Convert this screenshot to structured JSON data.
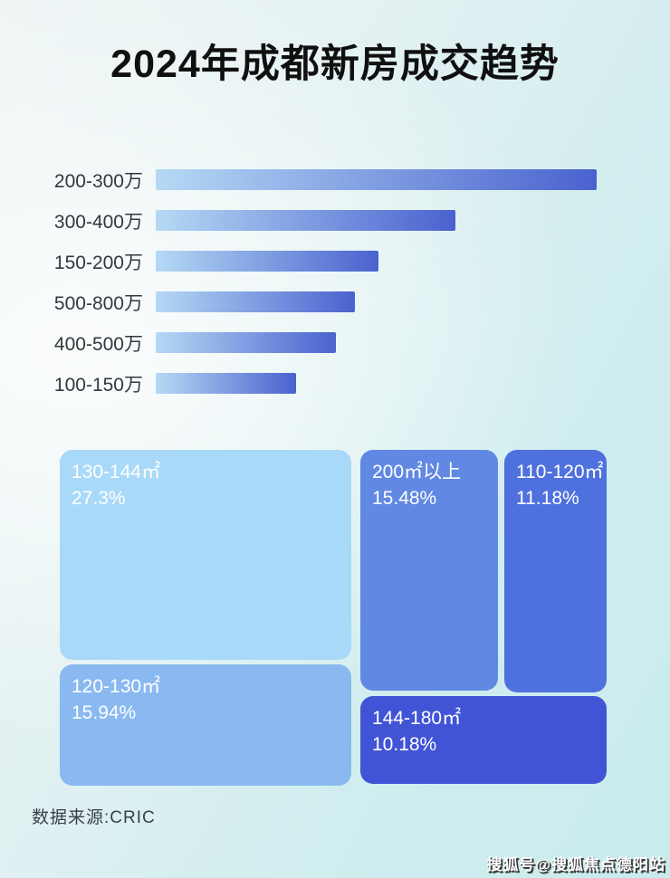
{
  "title": "2024年成都新房成交趋势",
  "footer": {
    "source": "数据来源:CRIC"
  },
  "watermark": {
    "text": "搜狐号@搜狐焦点德阳站"
  },
  "colors": {
    "background_light": "#f2f7f7",
    "background_cyan": "#c9ebee",
    "title_color": "#101010",
    "bar_label_color": "#33383d",
    "treemap_text_color": "#ffffff"
  },
  "chart_data": [
    {
      "type": "bar",
      "orientation": "horizontal",
      "title": "2024年成都新房成交趋势 (总价段成交, 无数值标注)",
      "categories": [
        "200-300万",
        "300-400万",
        "150-200万",
        "500-800万",
        "400-500万",
        "100-150万"
      ],
      "values_pct_of_max": [
        100,
        68,
        50.5,
        45.2,
        40.9,
        31.8
      ],
      "value_labels_shown": false,
      "axis_shown": false,
      "grid": false,
      "legend": false,
      "bar_gradient": [
        "#b5d9f4",
        "#4a62cf"
      ]
    },
    {
      "type": "treemap",
      "title": "面积段成交占比",
      "items": [
        {
          "label": "130-144㎡",
          "percent": "27.3%",
          "value": 27.3,
          "color": "#a9d9f8"
        },
        {
          "label": "120-130㎡",
          "percent": "15.94%",
          "value": 15.94,
          "color": "#89b9f0"
        },
        {
          "label": "200㎡以上",
          "percent": "15.48%",
          "value": 15.48,
          "color": "#6189e3"
        },
        {
          "label": "110-120㎡",
          "percent": "11.18%",
          "value": 11.18,
          "color": "#4e71de"
        },
        {
          "label": "144-180㎡",
          "percent": "10.18%",
          "value": 10.18,
          "color": "#4254d6"
        }
      ]
    }
  ]
}
